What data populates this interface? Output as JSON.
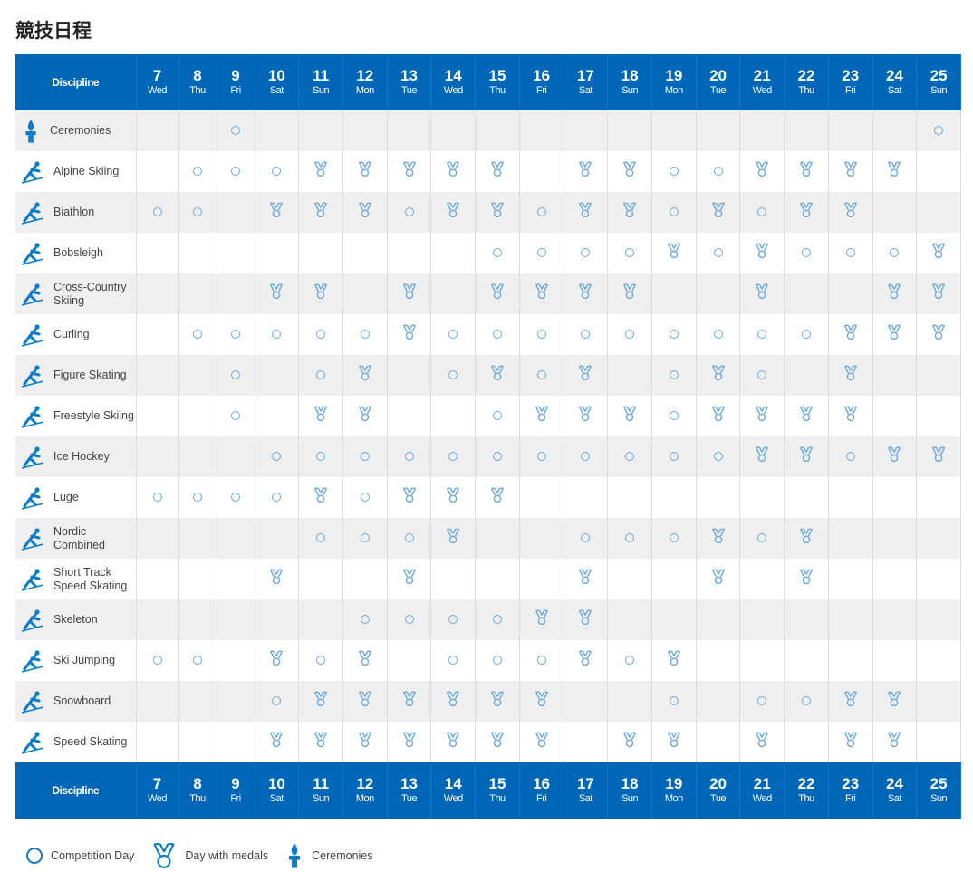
{
  "title": "競技日程",
  "header": {
    "discipline": "Discipline",
    "days": [
      {
        "n": "7",
        "d": "Wed"
      },
      {
        "n": "8",
        "d": "Thu"
      },
      {
        "n": "9",
        "d": "Fri"
      },
      {
        "n": "10",
        "d": "Sat"
      },
      {
        "n": "11",
        "d": "Sun"
      },
      {
        "n": "12",
        "d": "Mon"
      },
      {
        "n": "13",
        "d": "Tue"
      },
      {
        "n": "14",
        "d": "Wed"
      },
      {
        "n": "15",
        "d": "Thu"
      },
      {
        "n": "16",
        "d": "Fri"
      },
      {
        "n": "17",
        "d": "Sat"
      },
      {
        "n": "18",
        "d": "Sun"
      },
      {
        "n": "19",
        "d": "Mon"
      },
      {
        "n": "20",
        "d": "Tue"
      },
      {
        "n": "21",
        "d": "Wed"
      },
      {
        "n": "22",
        "d": "Thu"
      },
      {
        "n": "23",
        "d": "Fri"
      },
      {
        "n": "24",
        "d": "Sat"
      },
      {
        "n": "25",
        "d": "Sun"
      }
    ]
  },
  "legend_key": {
    "o": "competition-day",
    "m": "medal-day",
    ".": "none"
  },
  "rows": [
    {
      "name": "Ceremonies",
      "icon": "torch-icon",
      "sched": "..o...............o"
    },
    {
      "name": "Alpine Skiing",
      "icon": "alpine-skiing-icon",
      "sched": ".ooommmmm.mmoommmm."
    },
    {
      "name": "Biathlon",
      "icon": "biathlon-icon",
      "sched": "oo.mmmommommomomm.."
    },
    {
      "name": "Bobsleigh",
      "icon": "bobsleigh-icon",
      "sched": "........oooomomooom"
    },
    {
      "name": "Cross-Country Skiing",
      "icon": "cross-country-icon",
      "sched": "...mm.m.mmmm..m..mm"
    },
    {
      "name": "Curling",
      "icon": "curling-icon",
      "sched": ".ooooomooooooooommm"
    },
    {
      "name": "Figure Skating",
      "icon": "figure-skating-icon",
      "sched": "..o.om.omom.omo.m.."
    },
    {
      "name": "Freestyle Skiing",
      "icon": "freestyle-icon",
      "sched": "..o.mm..ommmommmm.."
    },
    {
      "name": "Ice Hockey",
      "icon": "ice-hockey-icon",
      "sched": "...ooooooooooommomm"
    },
    {
      "name": "Luge",
      "icon": "luge-icon",
      "sched": "oooomommm.........."
    },
    {
      "name": "Nordic Combined",
      "icon": "nordic-combined-icon",
      "sched": "....ooom..ooomom..."
    },
    {
      "name": "Short Track Speed Skating",
      "icon": "short-track-icon",
      "sched": "...m..m...m..m.m..."
    },
    {
      "name": "Skeleton",
      "icon": "skeleton-icon",
      "sched": ".....oooomm........"
    },
    {
      "name": "Ski Jumping",
      "icon": "ski-jumping-icon",
      "sched": "oo.mom.ooomom......"
    },
    {
      "name": "Snowboard",
      "icon": "snowboard-icon",
      "sched": "...ommmmmm..o.oomm."
    },
    {
      "name": "Speed Skating",
      "icon": "speed-skating-icon",
      "sched": "...mmmmmmm.mm.m.mm."
    }
  ],
  "legend": {
    "competition": "Competition Day",
    "medals": "Day with medals",
    "ceremonies": "Ceremonies"
  },
  "colors": {
    "header": "#0067b8",
    "icon": "#0a7cc9",
    "ring": "#6aa9d8"
  }
}
